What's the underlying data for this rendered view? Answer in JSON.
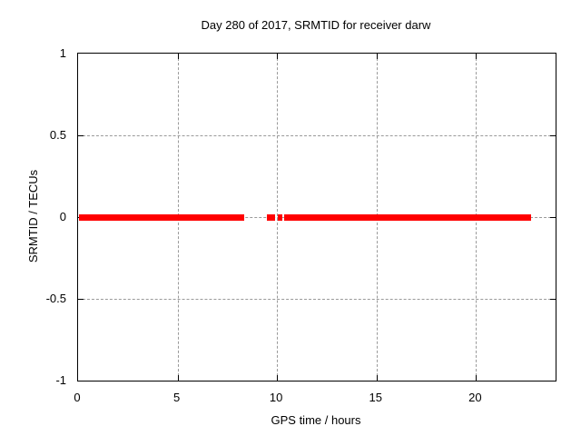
{
  "title": "Day 280 of 2017, SRMTID for receiver darw",
  "x_axis": {
    "label": "GPS time / hours",
    "min": 0,
    "max": 24,
    "ticks": [
      {
        "v": 0,
        "label": "0"
      },
      {
        "v": 5,
        "label": "5"
      },
      {
        "v": 10,
        "label": "10"
      },
      {
        "v": 15,
        "label": "15"
      },
      {
        "v": 20,
        "label": "20"
      }
    ]
  },
  "y_axis": {
    "label": "SRMTID / TECUs",
    "min": -1,
    "max": 1,
    "ticks": [
      {
        "v": -1,
        "label": "-1"
      },
      {
        "v": -0.5,
        "label": "-0.5"
      },
      {
        "v": 0,
        "label": "0"
      },
      {
        "v": 0.5,
        "label": "0.5"
      },
      {
        "v": 1,
        "label": "1"
      }
    ]
  },
  "colors": {
    "series": "#ff0000",
    "grid": "#9a9a9a",
    "border": "#000000",
    "background": "#ffffff",
    "text": "#000000"
  },
  "chart_data": {
    "type": "line",
    "title": "Day 280 of 2017, SRMTID for receiver darw",
    "xlabel": "GPS time / hours",
    "ylabel": "SRMTID / TECUs",
    "xlim": [
      0,
      24
    ],
    "ylim": [
      -1,
      1
    ],
    "grid": true,
    "legend": "none",
    "series": [
      {
        "name": "SRMTID",
        "color": "#ff0000",
        "y_value": 0,
        "line_thickness_px": 7,
        "segments_hours": [
          [
            0.05,
            8.37
          ],
          [
            9.51,
            9.9
          ],
          [
            10.02,
            10.26
          ],
          [
            10.36,
            22.75
          ]
        ]
      }
    ]
  }
}
